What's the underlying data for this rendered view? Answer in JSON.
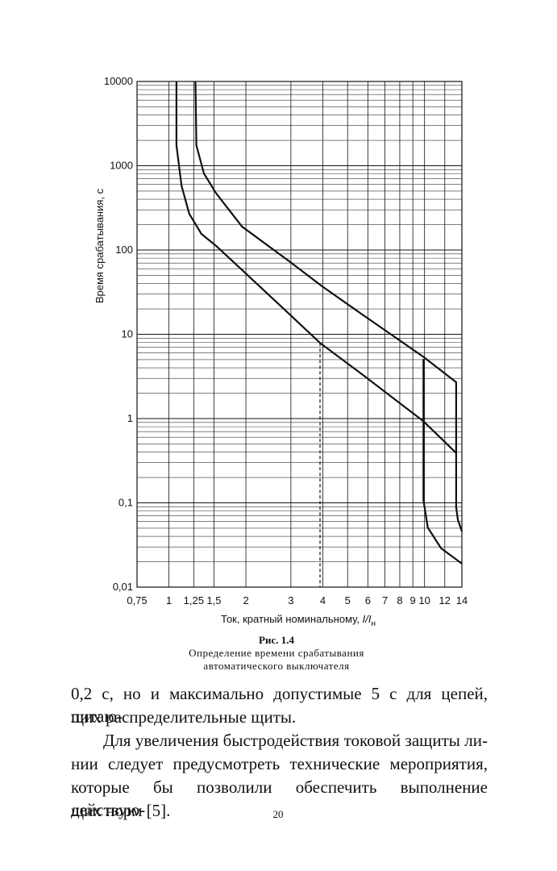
{
  "chart_data": {
    "type": "line",
    "log_x": true,
    "log_y": true,
    "grid": true,
    "minor_grid": true,
    "ylabel": "Время срабатывания, с",
    "xlabel": {
      "text": "Ток, кратный номинальному, ",
      "italic": "I/I",
      "subscript": "н"
    },
    "xlim": [
      0.75,
      14
    ],
    "ylim": [
      0.01,
      10000
    ],
    "xticks": [
      {
        "value": 0.75,
        "label": "0,75"
      },
      1,
      {
        "value": 1.25,
        "label": "1,25"
      },
      {
        "value": 1.5,
        "label": "1,5"
      },
      2,
      3,
      4,
      5,
      6,
      7,
      8,
      9,
      10,
      12,
      14
    ],
    "yticks": [
      {
        "value": 0.01,
        "label": "0,01"
      },
      {
        "value": 0.1,
        "label": "0,1"
      },
      1,
      10,
      100,
      1000,
      10000
    ],
    "series": [
      {
        "color": "#111111",
        "x": [
          1.07,
          1.07,
          1.12,
          1.2,
          1.34,
          1.53,
          1.93,
          2.98,
          3.9,
          5.73,
          9.9,
          13.3
        ],
        "values": [
          10000,
          1750,
          580,
          270,
          155,
          112,
          58,
          17,
          7.9,
          3.3,
          0.93,
          0.39
        ]
      },
      {
        "color": "#111111",
        "x": [
          1.27,
          1.28,
          1.37,
          1.53,
          1.93,
          2.98,
          3.98,
          5.73,
          9.9,
          13.3,
          13.3,
          13.5,
          14
        ],
        "values": [
          10000,
          1750,
          810,
          470,
          190,
          72,
          37,
          17,
          5.4,
          2.7,
          0.089,
          0.063,
          0.046
        ]
      },
      {
        "color": "#111111",
        "x": [
          9.9,
          9.9,
          10.3,
          11.6,
          14
        ],
        "values": [
          5.1,
          0.108,
          0.051,
          0.029,
          0.019
        ]
      }
    ],
    "reference_point": {
      "x": 3.9,
      "y": 7.9
    }
  },
  "caption": {
    "label": "Рис. 1.4",
    "lines": [
      "Определение времени срабатывания",
      "автоматического выключателя"
    ]
  },
  "body": [
    [
      "0,2 с, но и максимально допустимые 5 с для цепей, питаю-",
      "щих распределительные щиты."
    ],
    [
      "Для увеличения быстродействия токовой защиты ли-",
      "нии следует предусмотреть технические мероприятия,",
      "которые бы позволили обеспечить выполнение действую-",
      "щих норм [5]."
    ]
  ],
  "page_number": "20"
}
